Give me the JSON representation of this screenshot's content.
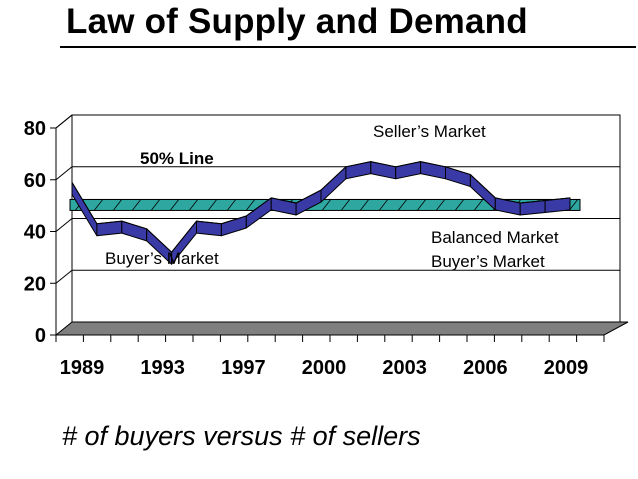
{
  "slide": {
    "title": "Law of Supply and Demand",
    "subtitle": "# of buyers versus # of sellers"
  },
  "colors": {
    "line_fill": "#3a3aa6",
    "line_stroke": "#000000",
    "band_fill": "#2ea7a0",
    "floor_fill": "#7f7f7f",
    "grid": "#000000"
  },
  "chart_data": {
    "type": "line",
    "style": "3d-ribbon",
    "title": "",
    "xlabel": "",
    "ylabel": "",
    "ylim": [
      0,
      80
    ],
    "yticks": [
      "0",
      "20",
      "40",
      "60",
      "80"
    ],
    "xtick_labels": [
      "1989",
      "1993",
      "1997",
      "2000",
      "2003",
      "2006",
      "2009"
    ],
    "grid": "horizontal",
    "series": [
      {
        "x": [
          1989,
          1990,
          1991,
          1992,
          1993,
          1994,
          1995,
          1996,
          1997,
          1998,
          1999,
          2000,
          2001,
          2002,
          2003,
          2004,
          2005,
          2006,
          2007,
          2008,
          2009
        ],
        "values": [
          59,
          43,
          44,
          41,
          32,
          44,
          43,
          46,
          53,
          51,
          56,
          65,
          67,
          65,
          67,
          65,
          62,
          53,
          51,
          52,
          53
        ]
      }
    ],
    "reference_band": {
      "label": "50% Line",
      "value": 52
    },
    "annotations": [
      {
        "id": "sellers",
        "text": "Seller’s Market"
      },
      {
        "id": "fifty",
        "text": "50% Line"
      },
      {
        "id": "balanced",
        "text": "Balanced Market"
      },
      {
        "id": "buyers_right",
        "text": "Buyer’s Market"
      },
      {
        "id": "buyers_left",
        "text": "Buyer’s Market"
      }
    ]
  }
}
